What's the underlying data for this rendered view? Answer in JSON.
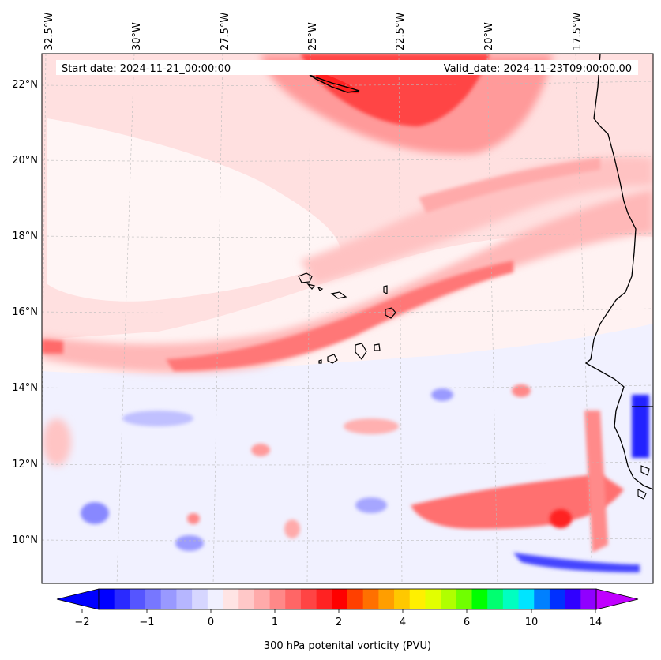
{
  "map": {
    "start_date_label": "Start date: 2024-11-21_00:00:00",
    "valid_date_label": "Valid_date: 2024-11-23T09:00:00.00",
    "lon_ticks": [
      "32.5°W",
      "30°W",
      "27.5°W",
      "25°W",
      "22.5°W",
      "20°W",
      "17.5°W"
    ],
    "lat_ticks": [
      "22°N",
      "20°N",
      "18°N",
      "16°N",
      "14°N",
      "12°N",
      "10°N"
    ]
  },
  "colorbar": {
    "label": "300 hPa potenital vorticity (PVU)",
    "ticks": [
      "−2",
      "−1",
      "0",
      "1",
      "2",
      "4",
      "6",
      "10",
      "14"
    ],
    "colors": [
      "#0000ff",
      "#2a2aff",
      "#5555ff",
      "#7777ff",
      "#9999ff",
      "#b6b6ff",
      "#d6d6ff",
      "#f0f0ff",
      "#ffe4e4",
      "#ffc8c8",
      "#ffaaaa",
      "#ff8888",
      "#ff6666",
      "#ff4444",
      "#ff2222",
      "#ff0000",
      "#ff4000",
      "#ff7000",
      "#ff9e00",
      "#ffc800",
      "#fff000",
      "#e2ff00",
      "#b0ff00",
      "#70ff00",
      "#00ff00",
      "#00ff70",
      "#00ffc0",
      "#00e4ff",
      "#0080ff",
      "#0030ff",
      "#3000ff",
      "#9000ff"
    ],
    "under_color": "#0000ff",
    "over_color": "#c000ff"
  },
  "features": {
    "pv_positive_color": "#ff0000",
    "pv_negative_color": "#0000ff",
    "background_color": "#f0f0ff"
  }
}
